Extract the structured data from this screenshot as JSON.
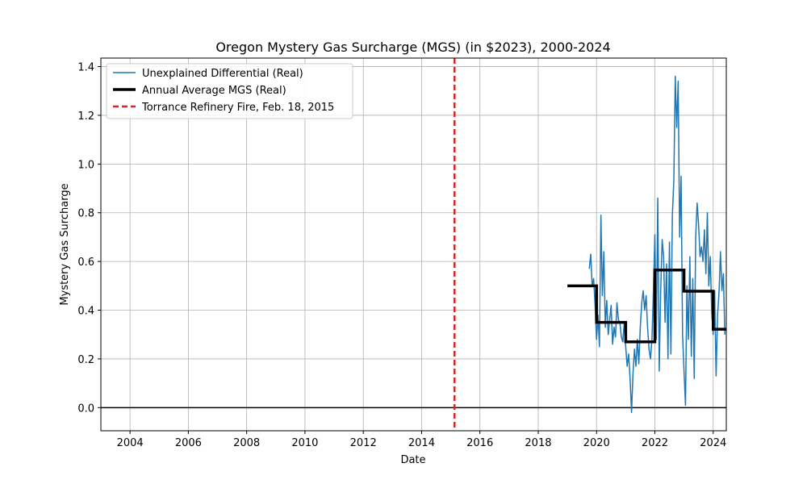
{
  "chart_data": {
    "type": "line",
    "title": "Oregon Mystery Gas Surcharge (MGS) (in $2023), 2000-2024",
    "xlabel": "Date",
    "ylabel": "Mystery Gas Surcharge",
    "xlim": [
      2003.0,
      2024.45
    ],
    "ylim": [
      -0.095,
      1.435
    ],
    "xticks": [
      2004,
      2006,
      2008,
      2010,
      2012,
      2014,
      2016,
      2018,
      2020,
      2022,
      2024
    ],
    "xtick_labels": [
      "2004",
      "2006",
      "2008",
      "2010",
      "2012",
      "2014",
      "2016",
      "2018",
      "2020",
      "2022",
      "2024"
    ],
    "yticks": [
      0.0,
      0.2,
      0.4,
      0.6,
      0.8,
      1.0,
      1.2,
      1.4
    ],
    "ytick_labels": [
      "0.0",
      "0.2",
      "0.4",
      "0.6",
      "0.8",
      "1.0",
      "1.2",
      "1.4"
    ],
    "grid": true,
    "legend_position": "top-left",
    "legend": [
      "Unexplained Differential (Real)",
      "Annual Average MGS (Real)",
      "Torrance Refinery Fire, Feb. 18, 2015"
    ],
    "colors": {
      "differential": "#1f77b4",
      "annual": "#000000",
      "fire": "#d62728"
    },
    "fire_date": 2015.13,
    "zero_line": 0.0,
    "series": [
      {
        "name": "Unexplained Differential (Real)",
        "x": [
          2019.75,
          2019.8,
          2019.85,
          2019.9,
          2019.95,
          2020.0,
          2020.05,
          2020.1,
          2020.15,
          2020.2,
          2020.25,
          2020.3,
          2020.35,
          2020.4,
          2020.45,
          2020.5,
          2020.55,
          2020.6,
          2020.65,
          2020.7,
          2020.75,
          2020.8,
          2020.85,
          2020.9,
          2020.95,
          2021.0,
          2021.05,
          2021.1,
          2021.15,
          2021.2,
          2021.25,
          2021.3,
          2021.35,
          2021.4,
          2021.45,
          2021.5,
          2021.55,
          2021.6,
          2021.65,
          2021.7,
          2021.75,
          2021.8,
          2021.85,
          2021.9,
          2021.95,
          2022.0,
          2022.05,
          2022.1,
          2022.15,
          2022.2,
          2022.25,
          2022.3,
          2022.35,
          2022.4,
          2022.45,
          2022.5,
          2022.55,
          2022.6,
          2022.65,
          2022.7,
          2022.75,
          2022.8,
          2022.85,
          2022.9,
          2022.95,
          2023.0,
          2023.05,
          2023.1,
          2023.15,
          2023.2,
          2023.25,
          2023.3,
          2023.35,
          2023.4,
          2023.45,
          2023.5,
          2023.55,
          2023.6,
          2023.65,
          2023.7,
          2023.75,
          2023.8,
          2023.85,
          2023.9,
          2023.95,
          2024.0,
          2024.05,
          2024.1,
          2024.15,
          2024.2,
          2024.25,
          2024.3,
          2024.35,
          2024.4
        ],
        "values": [
          0.57,
          0.63,
          0.5,
          0.53,
          0.42,
          0.28,
          0.38,
          0.25,
          0.79,
          0.46,
          0.64,
          0.33,
          0.44,
          0.3,
          0.36,
          0.42,
          0.26,
          0.33,
          0.29,
          0.43,
          0.36,
          0.35,
          0.29,
          0.27,
          0.35,
          0.25,
          0.17,
          0.22,
          0.12,
          -0.02,
          0.14,
          0.24,
          0.17,
          0.28,
          0.18,
          0.33,
          0.43,
          0.48,
          0.4,
          0.46,
          0.33,
          0.24,
          0.2,
          0.28,
          0.48,
          0.71,
          0.28,
          0.86,
          0.15,
          0.48,
          0.69,
          0.62,
          0.35,
          0.59,
          0.2,
          0.68,
          0.22,
          0.79,
          0.93,
          1.36,
          1.15,
          1.34,
          0.7,
          0.95,
          0.3,
          0.15,
          0.01,
          0.5,
          0.28,
          0.62,
          0.21,
          0.53,
          0.12,
          0.7,
          0.84,
          0.75,
          0.62,
          0.66,
          0.6,
          0.73,
          0.55,
          0.8,
          0.5,
          0.62,
          0.39,
          0.3,
          0.48,
          0.13,
          0.38,
          0.47,
          0.64,
          0.48,
          0.55,
          0.3
        ]
      },
      {
        "name": "Annual Average MGS (Real)",
        "x": [
          2019.0,
          2020.0,
          2020.0,
          2021.0,
          2021.0,
          2022.0,
          2022.0,
          2023.0,
          2023.0,
          2024.0,
          2024.0,
          2024.45
        ],
        "values": [
          0.5,
          0.5,
          0.35,
          0.35,
          0.27,
          0.27,
          0.565,
          0.565,
          0.478,
          0.478,
          0.322,
          0.322
        ]
      }
    ]
  }
}
